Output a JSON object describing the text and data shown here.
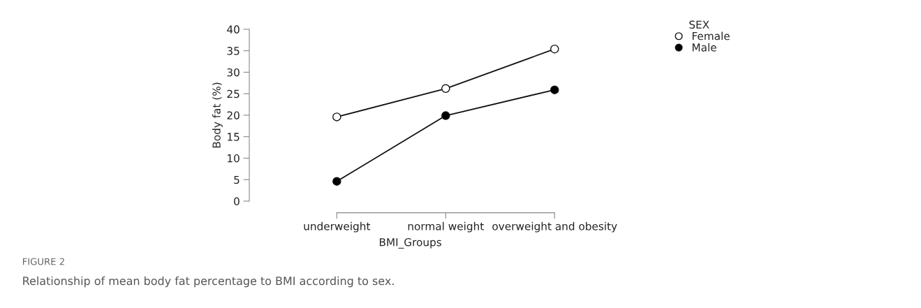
{
  "chart_data": {
    "type": "line",
    "xlabel": "BMI_Groups",
    "ylabel": "Body fat (%)",
    "legend_title": "SEX",
    "legend": "top right",
    "marker": "circle",
    "categories": [
      "underweight",
      "normal weight",
      "overweight and obesity"
    ],
    "series": [
      {
        "name": "Female",
        "color": "#ffffff",
        "values": [
          19.6,
          26.2,
          35.4
        ]
      },
      {
        "name": "Male",
        "color": "#000000",
        "values": [
          4.6,
          19.9,
          25.9
        ]
      }
    ],
    "ylim": [
      0,
      40
    ],
    "yticks": [
      0,
      5,
      10,
      15,
      20,
      25,
      30,
      35,
      40
    ],
    "grid": false,
    "annotations": [
      "FIGURE 2",
      "Relationship of mean body fat percentage to BMI according to sex."
    ]
  }
}
